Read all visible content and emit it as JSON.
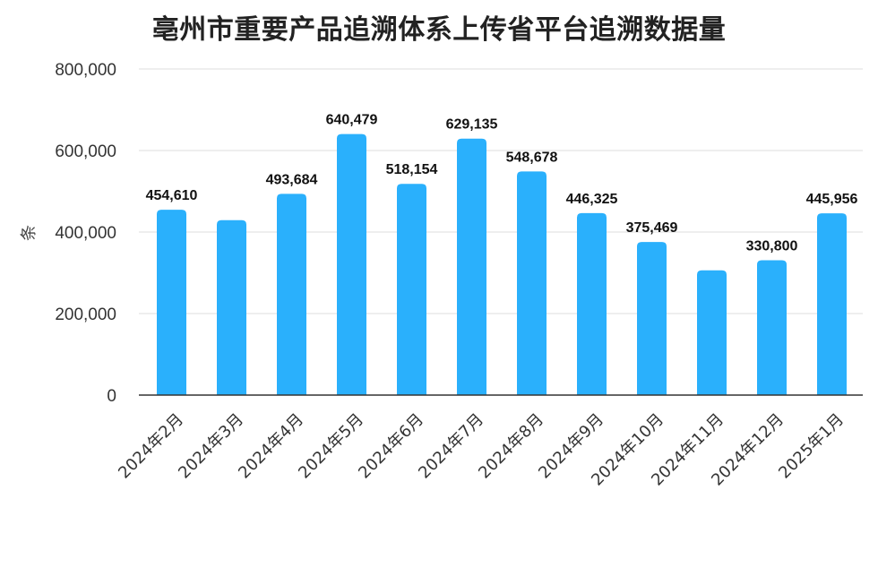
{
  "colors": {
    "bar": "#2ab0fc",
    "grid": "#dcdcdc",
    "axis": "#333333"
  },
  "chart_data": {
    "type": "bar",
    "title": "亳州市重要产品追溯体系上传省平台追溯数据量",
    "xlabel": "",
    "ylabel": "条",
    "ylim": [
      0,
      800000
    ],
    "yticks": [
      0,
      200000,
      400000,
      600000,
      800000
    ],
    "ytick_labels": [
      "0",
      "200,000",
      "400,000",
      "600,000",
      "800,000"
    ],
    "grid": true,
    "categories": [
      "2024年2月",
      "2024年3月",
      "2024年4月",
      "2024年5月",
      "2024年6月",
      "2024年7月",
      "2024年8月",
      "2024年9月",
      "2024年10月",
      "2024年11月",
      "2024年12月",
      "2025年1月"
    ],
    "values": [
      454610,
      429000,
      493684,
      640479,
      518154,
      629135,
      548678,
      446325,
      375469,
      306000,
      330800,
      445956
    ],
    "data_labels": [
      "454,610",
      "",
      "493,684",
      "640,479",
      "518,154",
      "629,135",
      "548,678",
      "446,325",
      "375,469",
      "",
      "330,800",
      "445,956"
    ]
  }
}
